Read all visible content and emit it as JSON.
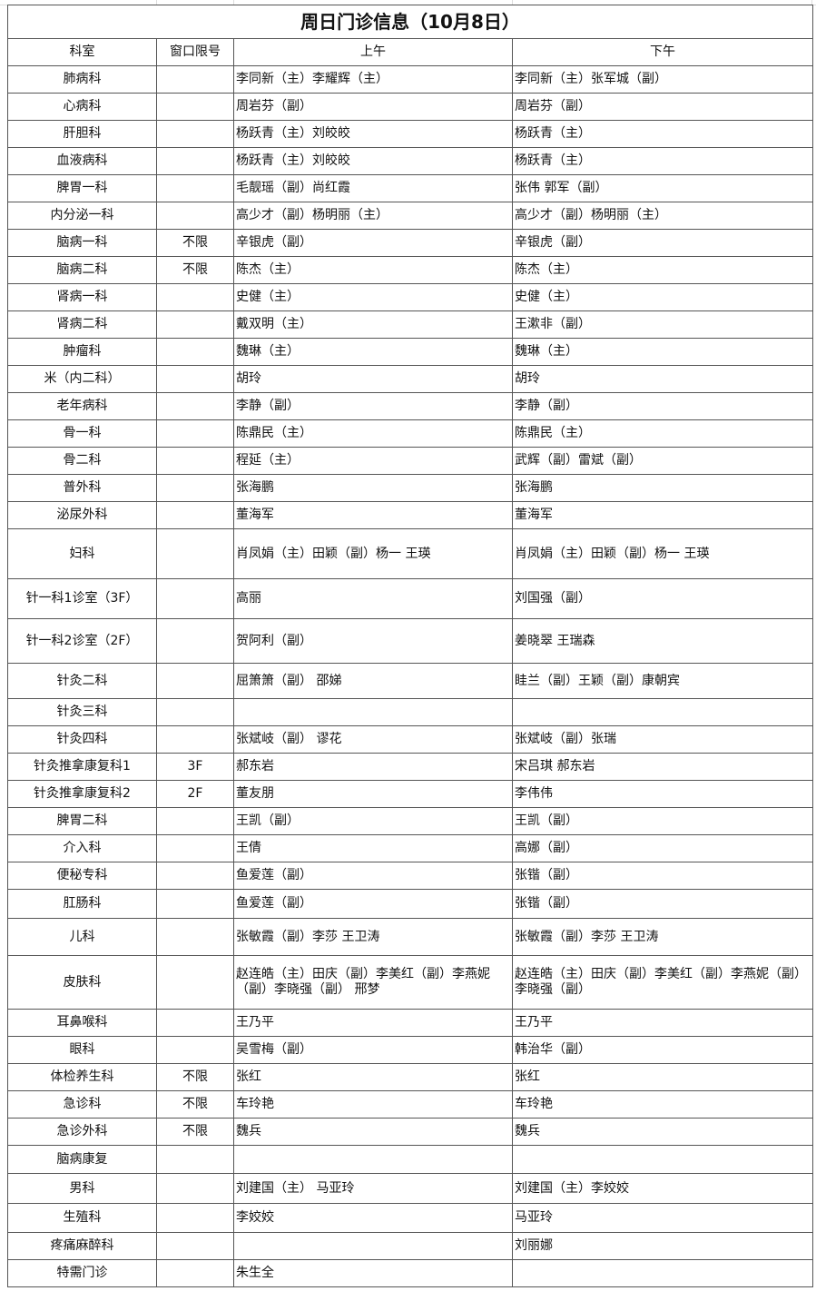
{
  "header": {
    "title": "周日门诊信息（10月8日）"
  },
  "table": {
    "columns": [
      "科室",
      "窗口限号",
      "上午",
      "下午"
    ],
    "rows": [
      [
        "肺病科",
        null,
        "李同新（主）李耀辉（主）",
        "李同新（主）张军城（副）"
      ],
      [
        "心病科",
        null,
        "周岩芬（副）",
        "周岩芬（副）"
      ],
      [
        "肝胆科",
        null,
        "杨跃青（主）刘皎皎",
        "杨跃青（主）"
      ],
      [
        "血液病科",
        null,
        "杨跃青（主）刘皎皎",
        "杨跃青（主）"
      ],
      [
        "脾胃一科",
        null,
        "毛靓瑶（副）尚红霞",
        "张伟 郭军（副）"
      ],
      [
        "内分泌一科",
        null,
        "高少才（副）杨明丽（主）",
        "高少才（副）杨明丽（主）"
      ],
      [
        "脑病一科",
        "不限",
        "辛银虎（副）",
        "辛银虎（副）"
      ],
      [
        "脑病二科",
        "不限",
        "陈杰（主）",
        "陈杰（主）"
      ],
      [
        "肾病一科",
        null,
        "史健（主）",
        "史健（主）"
      ],
      [
        "肾病二科",
        null,
        "戴双明（主）",
        "王漱非（副）"
      ],
      [
        "肿瘤科",
        null,
        "魏琳（主）",
        "魏琳（主）"
      ],
      [
        "米（内二科）",
        null,
        "胡玲",
        "胡玲"
      ],
      [
        "老年病科",
        null,
        "李静（副）",
        "李静（副）"
      ],
      [
        "骨一科",
        null,
        "陈鼎民（主）",
        "陈鼎民（主）"
      ],
      [
        "骨二科",
        null,
        "程延（主）",
        "武辉（副）雷斌（副）"
      ],
      [
        "普外科",
        null,
        "张海鹏",
        "张海鹏"
      ],
      [
        "泌尿外科",
        null,
        "董海军",
        "董海军"
      ],
      [
        "妇科",
        null,
        "肖凤娟（主）田颖（副）杨一 王瑛",
        "肖凤娟（主）田颖（副）杨一 王瑛"
      ],
      [
        "针一科1诊室（3F）",
        null,
        "高丽",
        "刘国强（副）"
      ],
      [
        "针一科2诊室（2F）",
        null,
        "贺阿利（副）",
        "姜晓翠 王瑞森"
      ],
      [
        "针灸二科",
        null,
        "屈箫箫（副） 邵娣",
        "眭兰（副）王颖（副）康朝宾"
      ],
      [
        "针灸三科",
        null,
        null,
        null
      ],
      [
        "针灸四科",
        null,
        "张斌岐（副） 谬花",
        "张斌岐（副）张瑞"
      ],
      [
        "针灸推拿康复科1",
        "3F",
        "郝东岩",
        "宋吕琪 郝东岩"
      ],
      [
        "针灸推拿康复科2",
        "2F",
        "董友朋",
        "李伟伟"
      ],
      [
        "脾胃二科",
        null,
        "王凯（副）",
        "王凯（副）"
      ],
      [
        "介入科",
        null,
        "王倩",
        "高娜（副）"
      ],
      [
        "便秘专科",
        null,
        "鱼爱莲（副）",
        "张锴（副）"
      ],
      [
        "肛肠科",
        null,
        "鱼爱莲（副）",
        "张锴（副）"
      ],
      [
        "儿科",
        null,
        "张敏霞（副）李莎 王卫涛",
        "张敏霞（副）李莎 王卫涛"
      ],
      [
        "皮肤科",
        null,
        "赵连皓（主）田庆（副）李美红（副）李燕妮（副）李晓强（副） 邢梦",
        "赵连皓（主）田庆（副）李美红（副）李燕妮（副）李晓强（副）"
      ],
      [
        "耳鼻喉科",
        null,
        "王乃平",
        "王乃平"
      ],
      [
        "眼科",
        null,
        "吴雪梅（副）",
        "韩治华（副）"
      ],
      [
        "体检养生科",
        "不限",
        "张红",
        "张红"
      ],
      [
        "急诊科",
        "不限",
        "车玲艳",
        "车玲艳"
      ],
      [
        "急诊外科",
        "不限",
        "魏兵",
        "魏兵"
      ],
      [
        "脑病康复",
        null,
        null,
        null
      ],
      [
        "男科",
        null,
        "刘建国（主） 马亚玲",
        "刘建国（主）李姣姣"
      ],
      [
        "生殖科",
        null,
        "李姣姣",
        "马亚玲"
      ],
      [
        "疼痛麻醉科",
        null,
        null,
        "刘丽娜"
      ],
      [
        "特需门诊",
        null,
        "朱生全",
        null
      ]
    ]
  }
}
